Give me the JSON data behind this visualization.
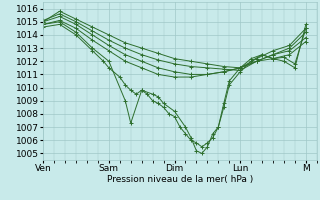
{
  "background_color": "#c8eaea",
  "grid_color": "#a0c8c8",
  "line_color": "#2d6e2d",
  "ylabel_ticks": [
    1005,
    1006,
    1007,
    1008,
    1009,
    1010,
    1011,
    1012,
    1013,
    1014,
    1015,
    1016
  ],
  "ylim": [
    1004.5,
    1016.5
  ],
  "xlabel": "Pression niveau de la mer( hPa )",
  "xtick_labels": [
    "Ven",
    "Sam",
    "Dim",
    "Lun",
    "M"
  ],
  "xtick_positions": [
    0,
    24,
    48,
    72,
    96
  ],
  "xlim": [
    0,
    100
  ],
  "series": [
    [
      0,
      1015.0,
      6,
      1015.8,
      12,
      1015.2,
      18,
      1014.6,
      24,
      1014.0,
      30,
      1013.4,
      36,
      1013.0,
      42,
      1012.6,
      48,
      1012.2,
      54,
      1012.0,
      60,
      1011.8,
      66,
      1011.6,
      72,
      1011.5,
      78,
      1012.2,
      84,
      1012.8,
      90,
      1013.2,
      96,
      1014.5
    ],
    [
      0,
      1015.1,
      6,
      1015.6,
      12,
      1015.0,
      18,
      1014.3,
      24,
      1013.6,
      30,
      1013.0,
      36,
      1012.5,
      42,
      1012.1,
      48,
      1011.8,
      54,
      1011.6,
      60,
      1011.5,
      66,
      1011.4,
      72,
      1011.3,
      78,
      1012.0,
      84,
      1012.5,
      90,
      1013.0,
      96,
      1014.2
    ],
    [
      0,
      1015.0,
      6,
      1015.4,
      12,
      1014.8,
      18,
      1014.0,
      24,
      1013.2,
      30,
      1012.5,
      36,
      1012.0,
      42,
      1011.5,
      48,
      1011.2,
      54,
      1011.0,
      60,
      1011.0,
      66,
      1011.2,
      72,
      1011.5,
      78,
      1012.0,
      84,
      1012.5,
      90,
      1012.8,
      96,
      1013.8
    ],
    [
      0,
      1014.8,
      6,
      1015.1,
      12,
      1014.5,
      18,
      1013.6,
      24,
      1012.8,
      30,
      1012.0,
      36,
      1011.5,
      42,
      1011.0,
      48,
      1010.8,
      54,
      1010.8,
      60,
      1011.0,
      66,
      1011.2,
      72,
      1011.5,
      78,
      1012.0,
      84,
      1012.2,
      90,
      1012.5,
      96,
      1013.5
    ],
    [
      0,
      1014.8,
      6,
      1015.0,
      12,
      1014.2,
      18,
      1013.0,
      24,
      1012.0,
      30,
      1009.0,
      32,
      1007.3,
      36,
      1009.8,
      40,
      1009.5,
      42,
      1009.3,
      44,
      1008.8,
      48,
      1008.2,
      52,
      1007.0,
      54,
      1006.2,
      56,
      1005.2,
      58,
      1005.0,
      60,
      1005.5,
      62,
      1006.5,
      64,
      1007.0,
      66,
      1008.5,
      68,
      1010.2,
      72,
      1011.2,
      76,
      1012.0,
      80,
      1012.5,
      84,
      1012.2,
      88,
      1012.0,
      92,
      1011.5,
      96,
      1014.8
    ],
    [
      0,
      1014.6,
      6,
      1014.8,
      12,
      1014.0,
      18,
      1012.8,
      22,
      1012.0,
      24,
      1011.5,
      28,
      1010.8,
      30,
      1010.2,
      32,
      1009.8,
      34,
      1009.5,
      36,
      1009.8,
      38,
      1009.5,
      40,
      1009.0,
      42,
      1008.8,
      44,
      1008.5,
      46,
      1008.0,
      48,
      1007.8,
      50,
      1007.0,
      52,
      1006.5,
      54,
      1006.0,
      56,
      1005.8,
      58,
      1005.5,
      60,
      1005.8,
      62,
      1006.2,
      64,
      1007.0,
      66,
      1008.8,
      68,
      1010.5,
      72,
      1011.5,
      76,
      1012.2,
      80,
      1012.5,
      84,
      1012.2,
      88,
      1012.3,
      92,
      1011.8,
      96,
      1014.5
    ]
  ]
}
